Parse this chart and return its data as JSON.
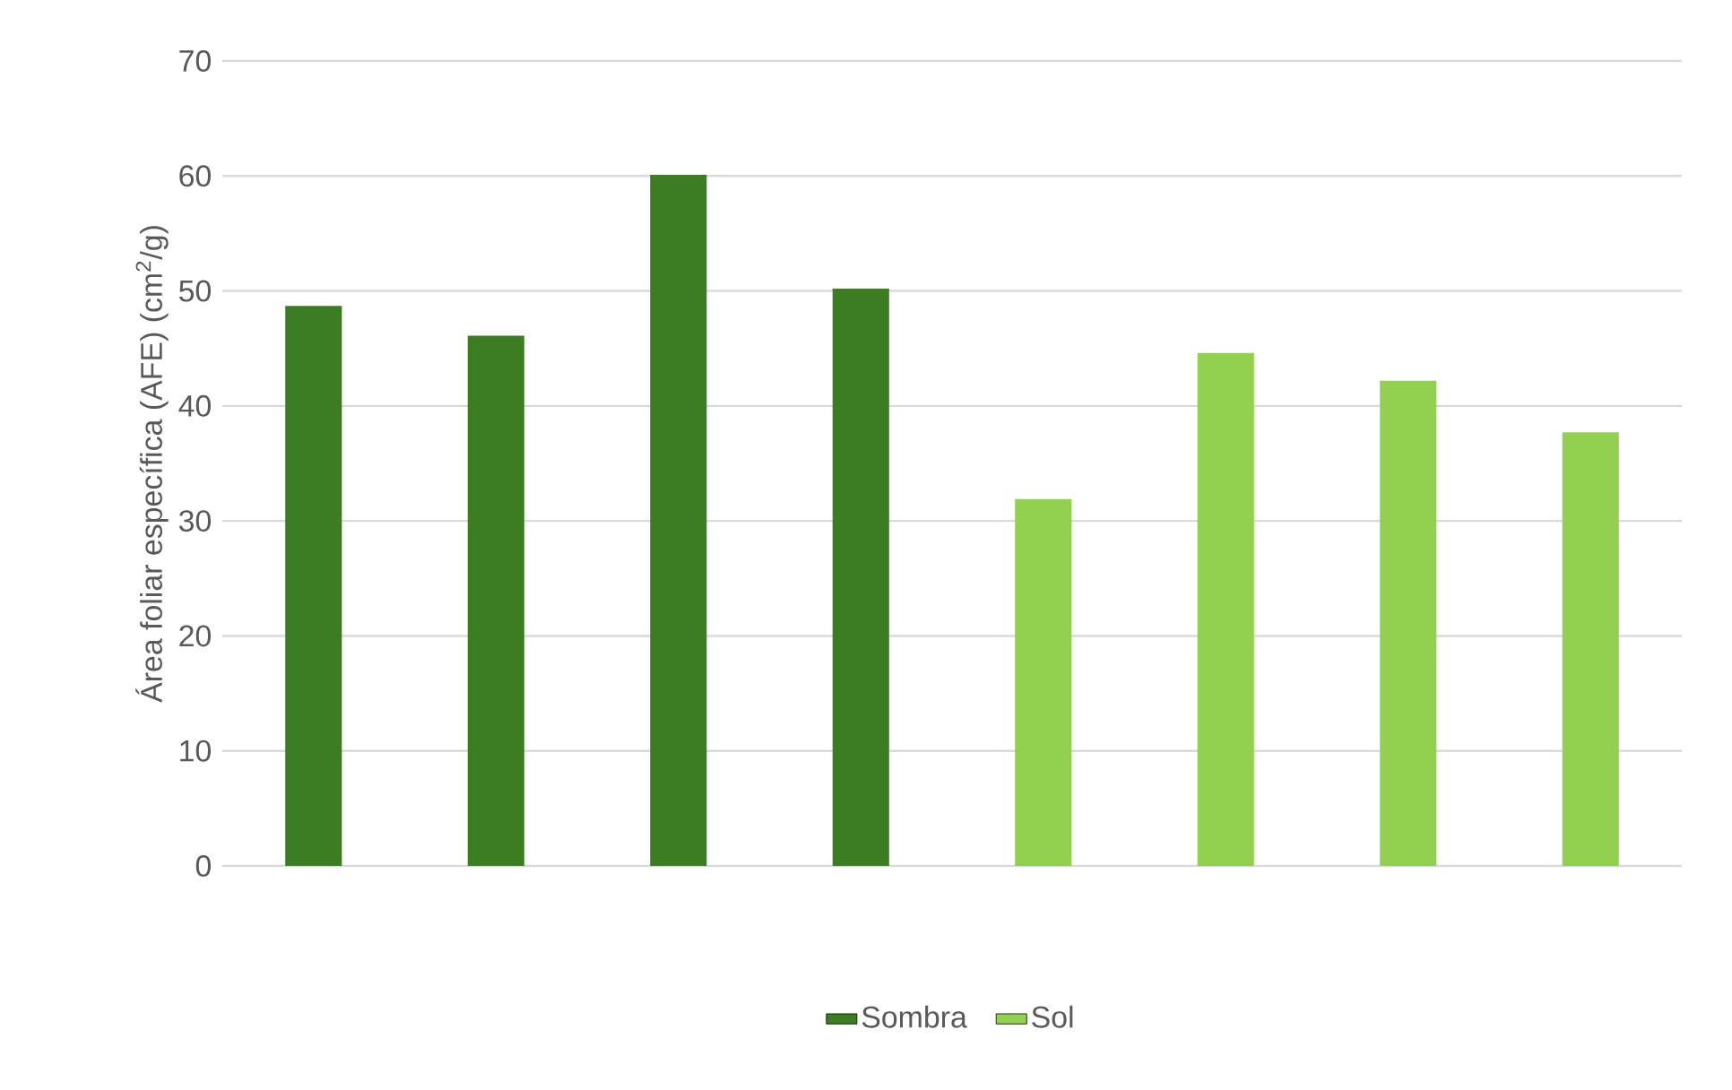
{
  "chart_data": {
    "type": "bar",
    "ylabel": "Área foliar específica (AFE) (cm$^{2}$/g)",
    "categories": [
      null,
      null,
      null,
      null,
      null,
      null,
      null,
      null
    ],
    "series": [
      {
        "name": "Sombra",
        "color": "#3c7d22",
        "values": [
          48.7,
          46.1,
          60.1,
          50.2,
          null,
          null,
          null,
          null
        ]
      },
      {
        "name": "Sol",
        "color": "#92d050",
        "values": [
          null,
          null,
          null,
          null,
          31.9,
          44.6,
          42.2,
          37.7
        ]
      }
    ],
    "ylim": [
      0,
      70
    ],
    "yticks": [
      0,
      10,
      20,
      30,
      40,
      50,
      60,
      70
    ],
    "grid": "y",
    "legend": "bottom"
  }
}
